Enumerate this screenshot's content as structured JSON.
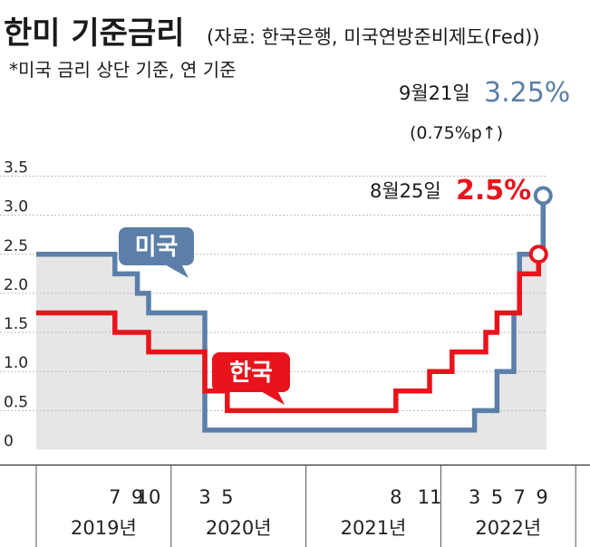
{
  "title": {
    "main": "한미 기준금리",
    "source": "(자료:  한국은행, 미국연방준비제도(Fed))",
    "note": "*미국 금리 상단 기준, 연 기준"
  },
  "colors": {
    "us": "#5b7fa8",
    "kr": "#e8141c",
    "area": "#e6e6e6",
    "grid": "#bbbbbb"
  },
  "chart_data": {
    "type": "line",
    "step": true,
    "yticks": [
      "0",
      "0.5",
      "1.0",
      "1.5",
      "2.0",
      "2.5",
      "3.0",
      "3.5"
    ],
    "ylim": [
      0,
      3.5
    ],
    "x_month_ticks": [
      {
        "label": "7",
        "m": 7
      },
      {
        "label": "9",
        "m": 9
      },
      {
        "label": "10",
        "m": 10
      },
      {
        "label": "3",
        "m": 15
      },
      {
        "label": "5",
        "m": 17
      },
      {
        "label": "8",
        "m": 32
      },
      {
        "label": "11",
        "m": 35
      },
      {
        "label": "3",
        "m": 39
      },
      {
        "label": "5",
        "m": 41
      },
      {
        "label": "7",
        "m": 43
      },
      {
        "label": "9",
        "m": 45
      }
    ],
    "years": [
      {
        "label": "2019년",
        "start": 0,
        "end": 12
      },
      {
        "label": "2020년",
        "start": 12,
        "end": 24
      },
      {
        "label": "2021년",
        "start": 24,
        "end": 36
      },
      {
        "label": "2022년",
        "start": 36,
        "end": 48
      }
    ],
    "series": [
      {
        "key": "us",
        "points": [
          [
            0,
            2.5
          ],
          [
            7,
            2.25
          ],
          [
            9,
            2.0
          ],
          [
            10,
            1.75
          ],
          [
            15,
            0.25
          ],
          [
            39,
            0.5
          ],
          [
            41,
            1.0
          ],
          [
            42.5,
            1.75
          ],
          [
            43,
            2.5
          ],
          [
            45.1,
            3.25
          ]
        ]
      },
      {
        "key": "kr",
        "points": [
          [
            0,
            1.75
          ],
          [
            7,
            1.5
          ],
          [
            10,
            1.25
          ],
          [
            15,
            0.75
          ],
          [
            17,
            0.5
          ],
          [
            32,
            0.75
          ],
          [
            35,
            1.0
          ],
          [
            37,
            1.25
          ],
          [
            40,
            1.5
          ],
          [
            41,
            1.75
          ],
          [
            43,
            2.25
          ],
          [
            44.7,
            2.5
          ]
        ]
      }
    ],
    "series_labels": {
      "us": "미국",
      "kr": "한국"
    },
    "annotations": {
      "us": {
        "date": "9월21일",
        "value": "3.25%",
        "change": "(0.75%p↑)"
      },
      "kr": {
        "date": "8월25일",
        "value": "2.5%"
      }
    }
  }
}
